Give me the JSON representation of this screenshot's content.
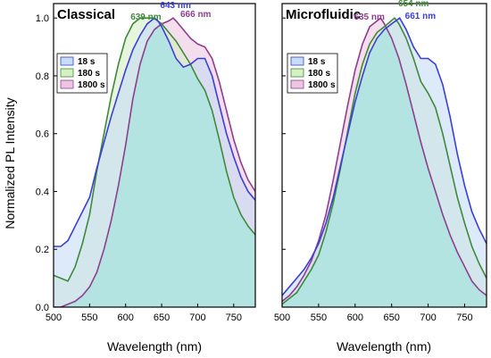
{
  "figure": {
    "y_axis_title": "Normalized PL Intensity",
    "x_axis_title": "Wavelength (nm)"
  },
  "colors": {
    "s18_line": "#3a3fd6",
    "s18_fill": "#c7dcf5",
    "s180_line": "#3f8a3a",
    "s180_fill": "#d6efc3",
    "s1800_line": "#8e3f8e",
    "s1800_fill": "#ecc6e0",
    "overlap_fill": "#a8e6e0"
  },
  "chart_data": [
    {
      "type": "area",
      "title": "Classical",
      "xlabel": "Wavelength (nm)",
      "ylabel": "Normalized PL Intensity",
      "xlim": [
        500,
        780
      ],
      "ylim": [
        0,
        1.05
      ],
      "x_ticks": [
        "500",
        "550",
        "600",
        "650",
        "700",
        "750"
      ],
      "y_ticks": [
        "0.0",
        "0.2",
        "0.4",
        "0.6",
        "0.8",
        "1.0"
      ],
      "legend": {
        "placement": "top-left",
        "entries": [
          "18 s",
          "180 s",
          "1800 s"
        ]
      },
      "peak_labels": [
        {
          "text": "639 nm",
          "series": "180 s",
          "x": 639,
          "y": 1.0
        },
        {
          "text": "643 nm",
          "series": "18 s",
          "x": 643,
          "y": 1.0
        },
        {
          "text": "666 nm",
          "series": "1800 s",
          "x": 666,
          "y": 1.0
        }
      ],
      "series": [
        {
          "name": "18 s",
          "x": [
            500,
            510,
            520,
            530,
            540,
            550,
            560,
            570,
            580,
            590,
            600,
            610,
            620,
            630,
            640,
            645,
            650,
            660,
            670,
            680,
            690,
            700,
            710,
            720,
            730,
            740,
            750,
            760,
            770,
            780
          ],
          "values": [
            0.21,
            0.21,
            0.23,
            0.28,
            0.33,
            0.38,
            0.48,
            0.57,
            0.66,
            0.74,
            0.82,
            0.89,
            0.94,
            0.98,
            1.0,
            0.99,
            0.97,
            0.92,
            0.86,
            0.83,
            0.84,
            0.86,
            0.86,
            0.8,
            0.7,
            0.6,
            0.52,
            0.45,
            0.4,
            0.37
          ]
        },
        {
          "name": "180 s",
          "x": [
            500,
            510,
            520,
            530,
            540,
            550,
            560,
            570,
            580,
            590,
            600,
            610,
            620,
            630,
            639,
            650,
            660,
            670,
            680,
            690,
            700,
            710,
            720,
            730,
            740,
            750,
            760,
            770,
            780
          ],
          "values": [
            0.11,
            0.1,
            0.09,
            0.14,
            0.22,
            0.32,
            0.47,
            0.6,
            0.73,
            0.84,
            0.93,
            0.98,
            1.0,
            1.0,
            1.0,
            0.98,
            0.95,
            0.92,
            0.88,
            0.84,
            0.79,
            0.75,
            0.68,
            0.58,
            0.47,
            0.38,
            0.32,
            0.28,
            0.25
          ]
        },
        {
          "name": "1800 s",
          "x": [
            500,
            510,
            520,
            530,
            540,
            550,
            560,
            570,
            580,
            590,
            600,
            610,
            620,
            630,
            640,
            650,
            660,
            666,
            670,
            680,
            690,
            700,
            710,
            720,
            730,
            740,
            750,
            760,
            770,
            780
          ],
          "values": [
            0.0,
            0.0,
            0.01,
            0.02,
            0.04,
            0.07,
            0.12,
            0.2,
            0.3,
            0.42,
            0.56,
            0.72,
            0.84,
            0.92,
            0.96,
            0.98,
            0.99,
            1.0,
            0.99,
            0.96,
            0.93,
            0.91,
            0.9,
            0.86,
            0.78,
            0.68,
            0.58,
            0.5,
            0.44,
            0.4
          ]
        }
      ]
    },
    {
      "type": "area",
      "title": "Microfluidic",
      "xlabel": "Wavelength (nm)",
      "ylabel": "",
      "xlim": [
        500,
        780
      ],
      "ylim": [
        0,
        1.05
      ],
      "x_ticks": [
        "500",
        "550",
        "600",
        "650",
        "700",
        "750"
      ],
      "y_ticks": [],
      "legend": {
        "placement": "top-left",
        "entries": [
          "18 s",
          "180 s",
          "1800 s"
        ]
      },
      "peak_labels": [
        {
          "text": "635 nm",
          "series": "1800 s",
          "x": 635,
          "y": 1.0
        },
        {
          "text": "654 nm",
          "series": "180 s",
          "x": 654,
          "y": 1.0
        },
        {
          "text": "661 nm",
          "series": "18 s",
          "x": 661,
          "y": 1.0
        }
      ],
      "series": [
        {
          "name": "18 s",
          "x": [
            500,
            510,
            520,
            530,
            540,
            550,
            560,
            570,
            580,
            590,
            600,
            610,
            620,
            630,
            640,
            650,
            661,
            670,
            680,
            690,
            700,
            710,
            720,
            730,
            740,
            750,
            760,
            770,
            780
          ],
          "values": [
            0.04,
            0.07,
            0.1,
            0.13,
            0.17,
            0.22,
            0.29,
            0.38,
            0.49,
            0.6,
            0.71,
            0.8,
            0.88,
            0.93,
            0.96,
            0.98,
            1.0,
            0.96,
            0.9,
            0.86,
            0.86,
            0.84,
            0.77,
            0.66,
            0.53,
            0.42,
            0.33,
            0.27,
            0.22
          ]
        },
        {
          "name": "180 s",
          "x": [
            500,
            510,
            520,
            530,
            540,
            550,
            560,
            570,
            580,
            590,
            600,
            610,
            620,
            630,
            640,
            654,
            660,
            670,
            680,
            690,
            700,
            710,
            720,
            730,
            740,
            750,
            760,
            770,
            780
          ],
          "values": [
            0.01,
            0.03,
            0.05,
            0.09,
            0.13,
            0.18,
            0.26,
            0.36,
            0.48,
            0.61,
            0.74,
            0.84,
            0.91,
            0.95,
            0.97,
            1.0,
            0.98,
            0.93,
            0.86,
            0.78,
            0.74,
            0.69,
            0.6,
            0.49,
            0.38,
            0.29,
            0.21,
            0.15,
            0.1
          ]
        },
        {
          "name": "1800 s",
          "x": [
            500,
            510,
            520,
            530,
            540,
            550,
            560,
            570,
            580,
            590,
            600,
            610,
            620,
            635,
            640,
            650,
            660,
            670,
            680,
            690,
            700,
            710,
            720,
            730,
            740,
            750,
            760,
            770,
            780
          ],
          "values": [
            0.02,
            0.04,
            0.07,
            0.11,
            0.16,
            0.23,
            0.32,
            0.44,
            0.57,
            0.7,
            0.82,
            0.91,
            0.97,
            1.0,
            0.98,
            0.93,
            0.86,
            0.77,
            0.67,
            0.57,
            0.48,
            0.4,
            0.32,
            0.25,
            0.19,
            0.14,
            0.09,
            0.06,
            0.04
          ]
        }
      ]
    }
  ]
}
